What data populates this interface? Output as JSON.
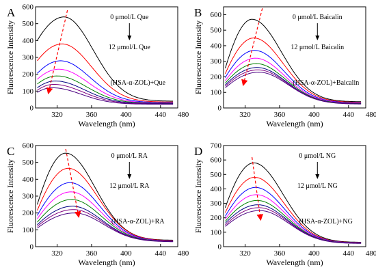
{
  "colors": [
    "#000000",
    "#ff0000",
    "#0000ff",
    "#ff00ff",
    "#008000",
    "#000080",
    "#800080",
    "#4b0082"
  ],
  "arrow_color": "#ff0000",
  "chart_data": [
    {
      "type": "line",
      "panel_letter": "A",
      "xlabel": "Wavelength (nm)",
      "ylabel": "Fluorescence Intensity",
      "xlim": [
        295,
        460
      ],
      "ylim": [
        0,
        600
      ],
      "xticks": [
        320,
        360,
        400,
        440,
        480
      ],
      "yticks": [
        0,
        100,
        200,
        300,
        400,
        500,
        600
      ],
      "ytick_labels": [
        "0",
        "100",
        "200",
        "300",
        "400",
        "500",
        "600"
      ],
      "legend_top": "0 μmol/L Que",
      "legend_bottom": "12 μmol/L Que",
      "system_label": "(HSA-α-ZOL)+Que",
      "arrow": {
        "x_start": 332,
        "y_start": 580,
        "x_end": 310,
        "y_end": 90
      },
      "series": [
        {
          "peak_x": 328,
          "peak_y": 540,
          "start_y": 400,
          "tail_y": 40
        },
        {
          "peak_x": 326,
          "peak_y": 380,
          "start_y": 280,
          "tail_y": 35
        },
        {
          "peak_x": 324,
          "peak_y": 280,
          "start_y": 205,
          "tail_y": 32
        },
        {
          "peak_x": 322,
          "peak_y": 230,
          "start_y": 170,
          "tail_y": 30
        },
        {
          "peak_x": 320,
          "peak_y": 190,
          "start_y": 142,
          "tail_y": 28
        },
        {
          "peak_x": 318,
          "peak_y": 160,
          "start_y": 120,
          "tail_y": 26
        },
        {
          "peak_x": 316,
          "peak_y": 140,
          "start_y": 105,
          "tail_y": 24
        },
        {
          "peak_x": 314,
          "peak_y": 120,
          "start_y": 92,
          "tail_y": 22
        }
      ]
    },
    {
      "type": "line",
      "panel_letter": "B",
      "xlabel": "Wavelength (nm)",
      "ylabel": "Fluorescence Intensity",
      "xlim": [
        295,
        460
      ],
      "ylim": [
        0,
        650
      ],
      "xticks": [
        320,
        360,
        400,
        440,
        480
      ],
      "yticks": [
        0,
        100,
        200,
        300,
        400,
        500,
        600
      ],
      "ytick_labels": [
        "0",
        "100",
        "200",
        "300",
        "400",
        "500",
        "600"
      ],
      "legend_top": "0 μmol/L Baicalin",
      "legend_bottom": "12 μmol/L Baicalin",
      "system_label": "(HSA-α-ZOL)+Baicalin",
      "arrow": {
        "x_start": 340,
        "y_start": 640,
        "x_end": 318,
        "y_end": 150
      },
      "series": [
        {
          "peak_x": 328,
          "peak_y": 570,
          "start_y": 255,
          "tail_y": 40
        },
        {
          "peak_x": 330,
          "peak_y": 450,
          "start_y": 220,
          "tail_y": 36
        },
        {
          "peak_x": 331,
          "peak_y": 370,
          "start_y": 195,
          "tail_y": 33
        },
        {
          "peak_x": 332,
          "peak_y": 320,
          "start_y": 175,
          "tail_y": 31
        },
        {
          "peak_x": 333,
          "peak_y": 285,
          "start_y": 160,
          "tail_y": 29
        },
        {
          "peak_x": 334,
          "peak_y": 260,
          "start_y": 148,
          "tail_y": 27
        },
        {
          "peak_x": 335,
          "peak_y": 245,
          "start_y": 140,
          "tail_y": 26
        },
        {
          "peak_x": 336,
          "peak_y": 230,
          "start_y": 130,
          "tail_y": 25
        }
      ]
    },
    {
      "type": "line",
      "panel_letter": "C",
      "xlabel": "Wavelength (nm)",
      "ylabel": "Fluorescence Intensity",
      "xlim": [
        295,
        460
      ],
      "ylim": [
        0,
        600
      ],
      "xticks": [
        320,
        360,
        400,
        440,
        480
      ],
      "yticks": [
        0,
        100,
        200,
        300,
        400,
        500,
        600
      ],
      "ytick_labels": [
        "0",
        "100",
        "200",
        "300",
        "400",
        "500",
        "600"
      ],
      "legend_top": "0 μmol/L RA",
      "legend_bottom": "12 μmol/L RA",
      "system_label": "(HSA-α-ZOL)+RA",
      "arrow": {
        "x_start": 330,
        "y_start": 580,
        "x_end": 345,
        "y_end": 180
      },
      "series": [
        {
          "peak_x": 330,
          "peak_y": 555,
          "start_y": 250,
          "tail_y": 38
        },
        {
          "peak_x": 333,
          "peak_y": 465,
          "start_y": 215,
          "tail_y": 36
        },
        {
          "peak_x": 335,
          "peak_y": 380,
          "start_y": 185,
          "tail_y": 34
        },
        {
          "peak_x": 336,
          "peak_y": 325,
          "start_y": 165,
          "tail_y": 33
        },
        {
          "peak_x": 337,
          "peak_y": 280,
          "start_y": 145,
          "tail_y": 32
        },
        {
          "peak_x": 338,
          "peak_y": 240,
          "start_y": 130,
          "tail_y": 31
        },
        {
          "peak_x": 339,
          "peak_y": 220,
          "start_y": 120,
          "tail_y": 30
        },
        {
          "peak_x": 340,
          "peak_y": 200,
          "start_y": 110,
          "tail_y": 29
        }
      ]
    },
    {
      "type": "line",
      "panel_letter": "D",
      "xlabel": "Wavelength (nm)",
      "ylabel": "Fluorescence Intensity",
      "xlim": [
        295,
        460
      ],
      "ylim": [
        0,
        700
      ],
      "xticks": [
        320,
        360,
        400,
        440,
        480
      ],
      "yticks": [
        0,
        100,
        200,
        300,
        400,
        500,
        600,
        700
      ],
      "ytick_labels": [
        "0",
        "100",
        "200",
        "300",
        "400",
        "500",
        "600",
        "700"
      ],
      "legend_top": "0 μmol/L NG",
      "legend_bottom": "12 μmol/L NG",
      "system_label": "(HSA-α-ZOL)+NG",
      "arrow": {
        "x_start": 328,
        "y_start": 620,
        "x_end": 338,
        "y_end": 190
      },
      "series": [
        {
          "peak_x": 330,
          "peak_y": 580,
          "start_y": 270,
          "tail_y": 30
        },
        {
          "peak_x": 331,
          "peak_y": 480,
          "start_y": 235,
          "tail_y": 28
        },
        {
          "peak_x": 332,
          "peak_y": 410,
          "start_y": 210,
          "tail_y": 27
        },
        {
          "peak_x": 333,
          "peak_y": 360,
          "start_y": 190,
          "tail_y": 26
        },
        {
          "peak_x": 334,
          "peak_y": 320,
          "start_y": 175,
          "tail_y": 25
        },
        {
          "peak_x": 335,
          "peak_y": 290,
          "start_y": 162,
          "tail_y": 24
        },
        {
          "peak_x": 336,
          "peak_y": 270,
          "start_y": 150,
          "tail_y": 23
        },
        {
          "peak_x": 337,
          "peak_y": 250,
          "start_y": 140,
          "tail_y": 22
        }
      ]
    }
  ]
}
